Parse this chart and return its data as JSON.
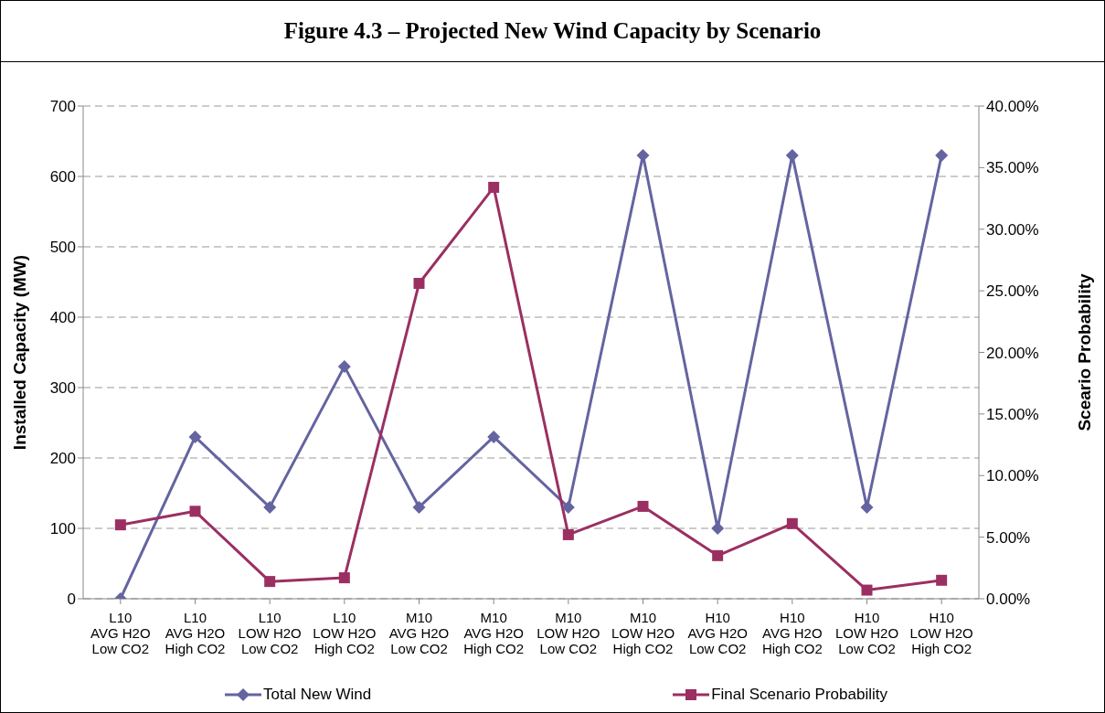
{
  "chart_data": {
    "type": "line",
    "title": "Figure 4.3 – Projected New Wind Capacity by Scenario",
    "categories": [
      "L10\nAVG H2O\nLow CO2",
      "L10\nAVG H2O\nHigh CO2",
      "L10\nLOW H2O\nLow CO2",
      "L10\nLOW H2O\nHigh CO2",
      "M10\nAVG H2O\nLow CO2",
      "M10\nAVG H2O\nHigh CO2",
      "M10\nLOW H2O\nLow CO2",
      "M10\nLOW H2O\nHigh CO2",
      "H10\nAVG H2O\nLow CO2",
      "H10\nAVG H2O\nHigh CO2",
      "H10\nLOW H2O\nLow CO2",
      "H10\nLOW H2O\nHigh CO2"
    ],
    "series": [
      {
        "name": "Total New Wind",
        "color": "#6464a0",
        "marker": "diamond",
        "values": [
          0,
          230,
          130,
          330,
          130,
          230,
          130,
          630,
          100,
          630,
          130,
          630
        ]
      },
      {
        "name": "Final Scenario Probability",
        "color": "#9b2f62",
        "marker": "square",
        "axis": "y2",
        "values": [
          6.0,
          7.1,
          1.4,
          1.7,
          25.6,
          33.4,
          5.2,
          7.5,
          3.5,
          6.1,
          0.7,
          1.5
        ]
      }
    ],
    "ylabel": "Installed Capacity (MW)",
    "y2label": "Sceario Probability",
    "ylim": [
      0,
      700
    ],
    "yticks": [
      0,
      100,
      200,
      300,
      400,
      500,
      600,
      700
    ],
    "y2lim": [
      0,
      40
    ],
    "y2ticks": [
      {
        "value": 0,
        "label": "0.00%"
      },
      {
        "value": 5,
        "label": "5.00%"
      },
      {
        "value": 10,
        "label": "10.00%"
      },
      {
        "value": 15,
        "label": "15.00%"
      },
      {
        "value": 20,
        "label": "20.00%"
      },
      {
        "value": 25,
        "label": "25.00%"
      },
      {
        "value": 30,
        "label": "30.00%"
      },
      {
        "value": 35,
        "label": "35.00%"
      },
      {
        "value": 40,
        "label": "40.00%"
      }
    ],
    "grid": "y",
    "legend": "bottom",
    "line_style": "solid"
  }
}
